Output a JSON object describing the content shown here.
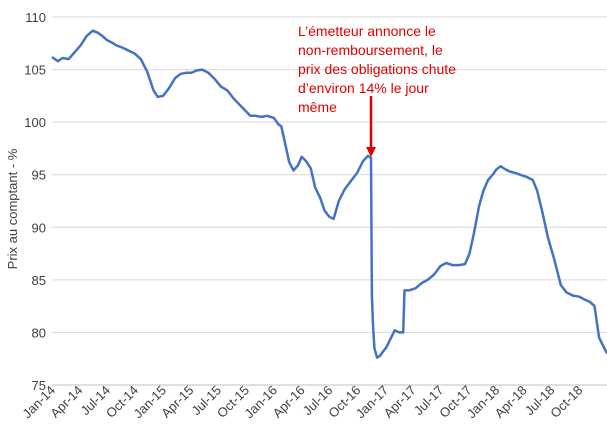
{
  "chart_data": {
    "type": "line",
    "title": "",
    "xlabel": "",
    "ylabel": "Prix au comptant - %",
    "ylim": [
      75,
      110
    ],
    "yticks": [
      "75",
      "80",
      "85",
      "90",
      "95",
      "100",
      "105",
      "110"
    ],
    "xlim": [
      "2014-01",
      "2018-12"
    ],
    "xtick_labels": [
      "Jan-14",
      "Apr-14",
      "Jul-14",
      "Oct-14",
      "Jan-15",
      "Apr-15",
      "Jul-15",
      "Oct-15",
      "Jan-16",
      "Apr-16",
      "Jul-16",
      "Oct-16",
      "Jan-17",
      "Apr-17",
      "Jul-17",
      "Oct-17",
      "Jan-18",
      "Apr-18",
      "Jul-18",
      "Oct-18"
    ],
    "grid": "horizontal",
    "legend": "none",
    "line_color": "#4472c4",
    "annotation": {
      "lines": [
        "L’émetteur annonce le",
        "non-remboursement, le",
        "prix des obligations chute",
        "d’environ 14% le jour",
        "même"
      ],
      "color": "#e00000",
      "arrow_target": [
        "2016-11-15",
        96.5
      ]
    },
    "series": [
      {
        "x": [
          "2014-01-01",
          "2014-01-20",
          "2014-02-05",
          "2014-02-25",
          "2014-03-15",
          "2014-04-05",
          "2014-04-25",
          "2014-05-15",
          "2014-06-01",
          "2014-06-15",
          "2014-07-01",
          "2014-07-15",
          "2014-08-01",
          "2014-08-20",
          "2014-09-10",
          "2014-10-01",
          "2014-10-20",
          "2014-11-10",
          "2014-12-01",
          "2014-12-15",
          "2015-01-01",
          "2015-01-20",
          "2015-02-10",
          "2015-03-01",
          "2015-03-20",
          "2015-04-05",
          "2015-04-20",
          "2015-05-10",
          "2015-05-30",
          "2015-06-20",
          "2015-07-10",
          "2015-08-01",
          "2015-08-20",
          "2015-09-05",
          "2015-09-25",
          "2015-10-15",
          "2015-11-01",
          "2015-11-20",
          "2015-12-10",
          "2016-01-01",
          "2016-01-15",
          "2016-01-25",
          "2016-02-05",
          "2016-02-20",
          "2016-03-05",
          "2016-03-20",
          "2016-04-01",
          "2016-04-15",
          "2016-05-01",
          "2016-05-15",
          "2016-06-01",
          "2016-06-15",
          "2016-07-01",
          "2016-07-15",
          "2016-08-01",
          "2016-08-20",
          "2016-09-10",
          "2016-10-01",
          "2016-10-20",
          "2016-11-05",
          "2016-11-15",
          "2016-11-18",
          "2016-11-22",
          "2016-11-26",
          "2016-12-05",
          "2016-12-15",
          "2016-12-25",
          "2017-01-05",
          "2017-01-20",
          "2017-02-01",
          "2017-02-15",
          "2017-03-01",
          "2017-03-05",
          "2017-03-20",
          "2017-04-10",
          "2017-05-01",
          "2017-05-20",
          "2017-06-10",
          "2017-07-01",
          "2017-07-20",
          "2017-08-10",
          "2017-09-01",
          "2017-09-20",
          "2017-10-05",
          "2017-10-20",
          "2017-11-05",
          "2017-11-20",
          "2017-12-05",
          "2017-12-20",
          "2018-01-01",
          "2018-01-15",
          "2018-02-01",
          "2018-02-15",
          "2018-03-01",
          "2018-03-20",
          "2018-04-10",
          "2018-05-01",
          "2018-05-15",
          "2018-06-01",
          "2018-06-20",
          "2018-07-10",
          "2018-08-01",
          "2018-08-20",
          "2018-09-10",
          "2018-10-01",
          "2018-10-20",
          "2018-11-05",
          "2018-11-20",
          "2018-12-05",
          "2018-12-31"
        ],
        "y": [
          106.2,
          105.8,
          106.1,
          106.0,
          106.6,
          107.3,
          108.2,
          108.7,
          108.5,
          108.2,
          107.8,
          107.6,
          107.3,
          107.1,
          106.8,
          106.5,
          106.0,
          104.8,
          103.0,
          102.4,
          102.5,
          103.2,
          104.2,
          104.6,
          104.7,
          104.7,
          104.9,
          105.0,
          104.7,
          104.1,
          103.4,
          103.0,
          102.3,
          101.8,
          101.2,
          100.6,
          100.6,
          100.5,
          100.6,
          100.4,
          99.8,
          99.6,
          98.2,
          96.2,
          95.4,
          95.9,
          96.7,
          96.3,
          95.6,
          93.8,
          92.8,
          91.6,
          91.0,
          90.8,
          92.5,
          93.6,
          94.4,
          95.2,
          96.3,
          96.8,
          96.6,
          83.5,
          80.5,
          78.5,
          77.6,
          77.8,
          78.2,
          78.6,
          79.5,
          80.2,
          80.0,
          80.0,
          84.0,
          84.0,
          84.2,
          84.7,
          85.0,
          85.5,
          86.3,
          86.6,
          86.4,
          86.4,
          86.5,
          87.5,
          89.5,
          92.0,
          93.5,
          94.5,
          95.0,
          95.5,
          95.8,
          95.5,
          95.3,
          95.2,
          95.0,
          94.8,
          94.5,
          93.5,
          91.5,
          89.0,
          87.0,
          84.5,
          83.8,
          83.5,
          83.4,
          83.1,
          82.9,
          82.5,
          79.5,
          78.0
        ]
      }
    ]
  }
}
